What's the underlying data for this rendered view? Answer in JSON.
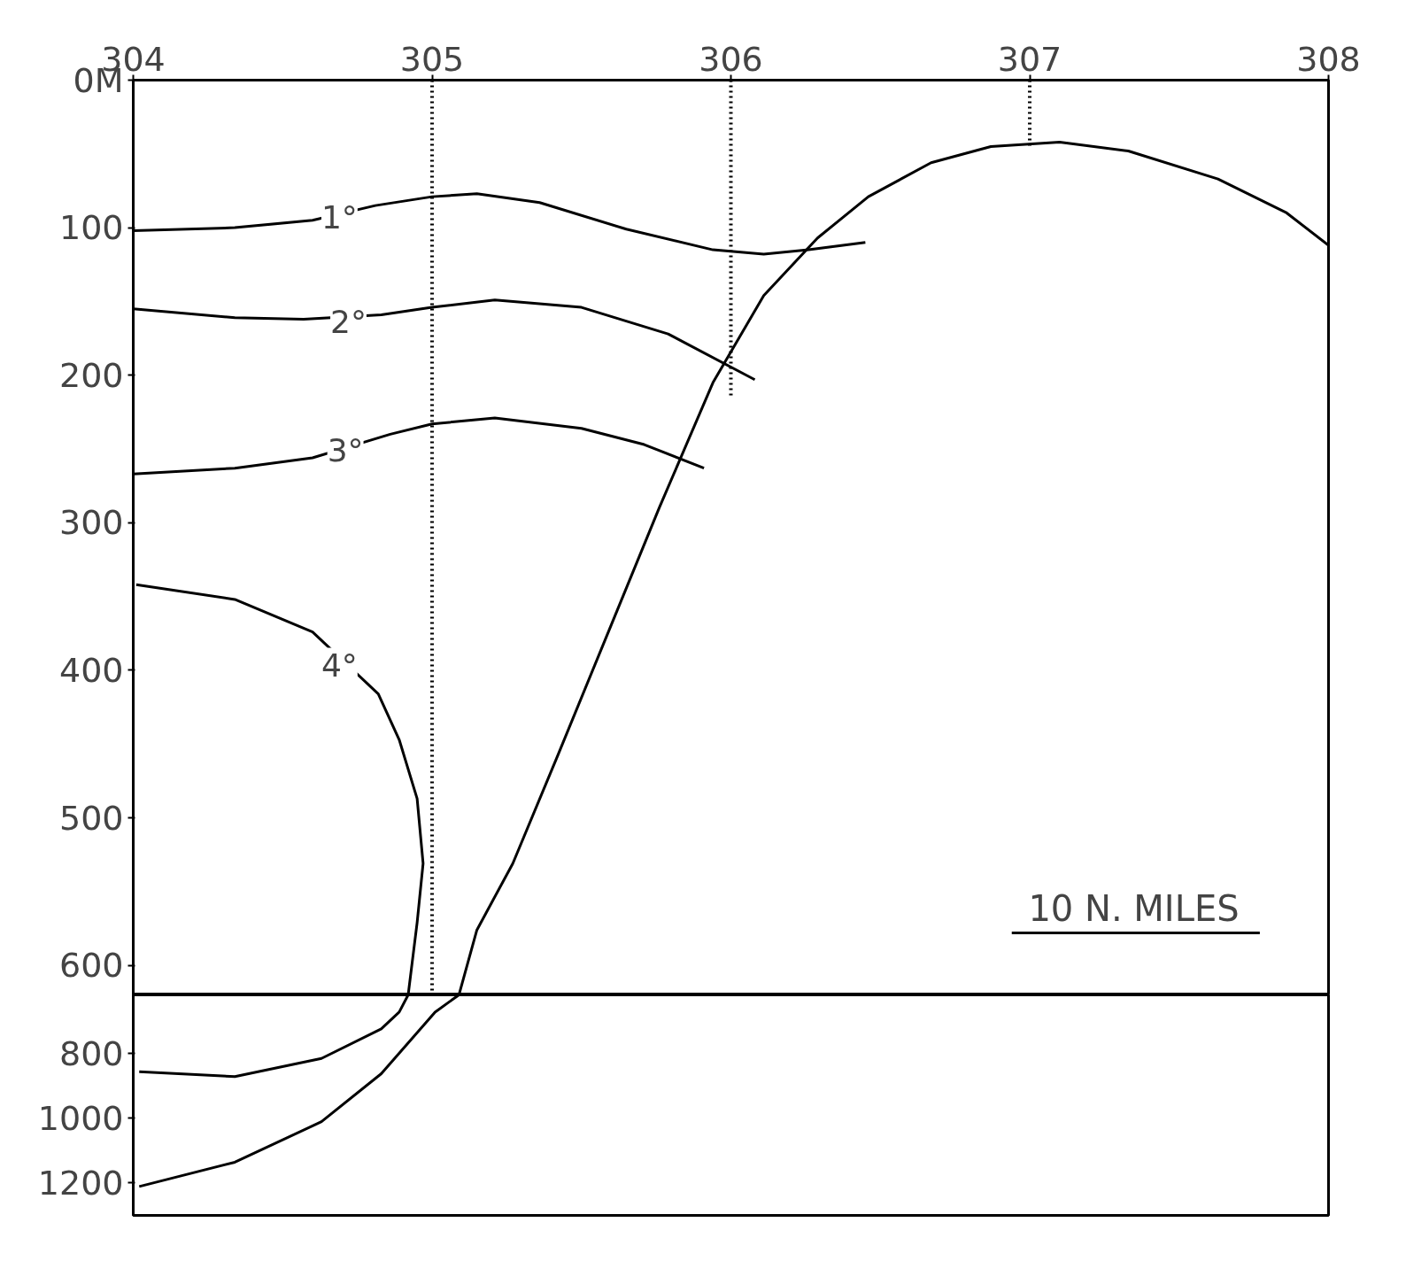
{
  "chart_data": [
    {
      "type": "line",
      "xlim": [
        304,
        308
      ],
      "xticks": [
        304,
        305,
        306,
        307,
        308
      ],
      "ylim": [
        620,
        0
      ],
      "yticks": [
        {
          "value": 0,
          "label": "0M"
        },
        100,
        200,
        300,
        400,
        500,
        600
      ],
      "grid": false,
      "marker": "none",
      "line_style": "solid",
      "series": [
        {
          "color": "#000000",
          "x": [
            304,
            304.34,
            304.6,
            304.81,
            305.0,
            305.15,
            305.36,
            305.65,
            305.94,
            306.11,
            306.26,
            306.45
          ],
          "values": [
            102,
            100,
            95,
            85,
            79,
            77,
            83,
            101,
            115,
            118,
            115,
            110
          ]
        },
        {
          "color": "#000000",
          "x": [
            304,
            304.34,
            304.57,
            304.83,
            305.0,
            305.21,
            305.5,
            305.79,
            306.08
          ],
          "values": [
            155,
            161,
            162,
            159,
            154,
            149,
            154,
            172,
            203
          ]
        },
        {
          "color": "#000000",
          "x": [
            304,
            304.34,
            304.6,
            304.86,
            305.0,
            305.21,
            305.5,
            305.71,
            305.91
          ],
          "values": [
            267,
            263,
            256,
            240,
            233,
            229,
            236,
            247,
            263
          ]
        },
        {
          "color": "#000000",
          "x": [
            304.01,
            304.34,
            304.6,
            304.82,
            304.89,
            304.95,
            304.97,
            304.95,
            304.92
          ],
          "values": [
            342,
            352,
            374,
            416,
            447,
            487,
            531,
            571,
            620
          ]
        },
        {
          "color": "#000000",
          "x": [
            305.09,
            305.15,
            305.27,
            305.42,
            305.59,
            305.76,
            305.94,
            306.11,
            306.29,
            306.46,
            306.67,
            306.87,
            307.1,
            307.33,
            307.63,
            307.86,
            308
          ],
          "values": [
            620,
            576,
            531,
            458,
            374,
            290,
            205,
            146,
            107,
            79,
            56,
            45,
            42,
            48,
            67,
            90,
            112
          ]
        },
        {
          "color": "#000000",
          "line_style": "dotted",
          "x": [
            305,
            305
          ],
          "values": [
            0,
            620
          ]
        },
        {
          "color": "#000000",
          "line_style": "dotted",
          "x": [
            306,
            306
          ],
          "values": [
            0,
            216
          ]
        },
        {
          "color": "#000000",
          "line_style": "dotted",
          "x": [
            307,
            307
          ],
          "values": [
            0,
            45
          ]
        },
        {
          "color": "#000000",
          "x": [
            306.94,
            307.77
          ],
          "values": [
            578,
            578
          ]
        }
      ],
      "annotations": [
        {
          "text": "1°",
          "x": 304.69,
          "y": 93
        },
        {
          "text": "2°",
          "x": 304.72,
          "y": 164
        },
        {
          "text": "3°",
          "x": 304.71,
          "y": 251
        },
        {
          "text": "4°",
          "x": 304.69,
          "y": 397
        },
        "10 N. MILES"
      ]
    },
    {
      "type": "line",
      "xlim": [
        304,
        308
      ],
      "ylim": [
        1300,
        620
      ],
      "yticks": [
        800,
        1000,
        1200
      ],
      "tick_labels": "y",
      "grid": false,
      "marker": "none",
      "line_style": "solid",
      "series": [
        {
          "color": "#000000",
          "x": [
            304.92,
            304.89,
            304.83,
            304.63,
            304.34,
            304.02
          ],
          "values": [
            620,
            673,
            725,
            816,
            872,
            857
          ]
        },
        {
          "color": "#000000",
          "x": [
            304.02,
            304.34,
            304.63,
            304.83,
            305.01,
            305.09
          ],
          "values": [
            1211,
            1136,
            1011,
            863,
            673,
            620
          ]
        }
      ]
    }
  ]
}
